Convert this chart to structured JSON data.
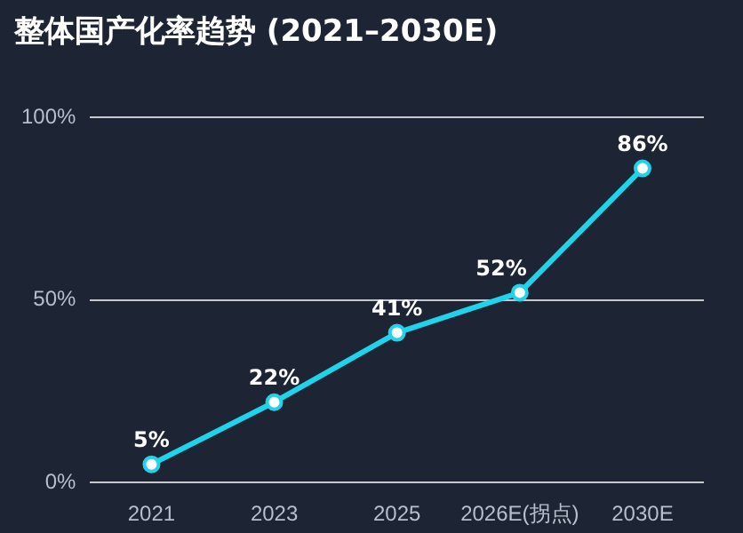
{
  "chart_data": {
    "type": "line",
    "title": "整体国产化率趋势 (2021–2030E)",
    "categories": [
      "2021",
      "2023",
      "2025",
      "2026E(拐点)",
      "2030E"
    ],
    "series": [
      {
        "color": "#1fd3ea",
        "values": [
          5,
          22,
          41,
          52,
          86
        ],
        "value_labels": [
          "5%",
          "22%",
          "41%",
          "52%",
          "86%"
        ]
      }
    ],
    "ylim": [
      0,
      100
    ],
    "yticks": [
      {
        "value": 0,
        "label": "0%"
      },
      {
        "value": 50,
        "label": "50%"
      },
      {
        "value": 100,
        "label": "100%"
      }
    ],
    "grid": "y",
    "legend": false,
    "marker": "circle",
    "line_style": "solid"
  }
}
